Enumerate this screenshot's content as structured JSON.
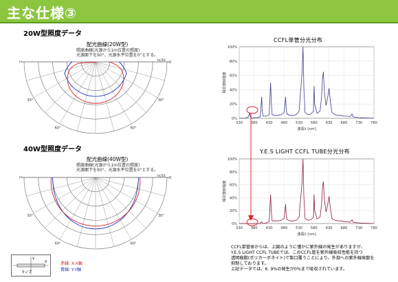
{
  "header": {
    "title": "主な仕様③"
  },
  "section20": {
    "title": "20W型照度データ",
    "curve_title": "配光曲線(20W型)",
    "notes": [
      "照度曲線(光源から1m位置の照度)",
      "光源面下を90°、光源水平位置を0°とする。"
    ],
    "unit": "lx/1k"
  },
  "section40": {
    "title": "40W型照度データ",
    "curve_title": "配光曲線(40W型)",
    "notes": [
      "照度曲線(光源から1m位置の照度)",
      "光源面下を90°、光源水平位置を0°とする。"
    ],
    "unit": "lx/1k"
  },
  "polar_angles": [
    "0°",
    "30°",
    "60°",
    "90°",
    "60°",
    "30°",
    "0°"
  ],
  "legend": {
    "red": "赤線: X-X軸",
    "blue": "青線: Y-Y軸",
    "lamp_label": "ランプ",
    "x_label": "X",
    "y_label": "Y"
  },
  "chart1": {
    "title": "CCFL単管分光分布"
  },
  "chart2": {
    "title": "Y.E.S LIGHT CCFL TUBE分光分布"
  },
  "description": [
    "CCFL単管体からは、上図のように僅かに紫外線の発生がありますが、",
    "Y.E.S LIGHT CCFL TUBEでは、このCCFL管を紫外線吸収性能を持つ",
    "透明樹脂(ポリカーボネイト)で製口覆うことにより、外部への紫外線発散を",
    "抑制しております。",
    "上記データでは、6. 9%の発生が0%まで吸収されています。"
  ],
  "chart_data": [
    {
      "type": "line",
      "title": "CCFL単管分光分布",
      "xlabel": "波長λ [nm]",
      "ylabel": "相対放射強度",
      "x_ticks": [
        330,
        380,
        430,
        480,
        530,
        580,
        630,
        680,
        730,
        780
      ],
      "y_ticks": [
        "0%",
        "20%",
        "40%",
        "60%",
        "80%",
        "100%"
      ],
      "xlim": [
        330,
        780
      ],
      "ylim": [
        0,
        100
      ],
      "color": "#3a3a8c",
      "series": [
        {
          "x": [
            330,
            350,
            360,
            365,
            367,
            370,
            375,
            380,
            390,
            400,
            405,
            407,
            410,
            420,
            430,
            435,
            437,
            440,
            450,
            460,
            470,
            480,
            485,
            487,
            490,
            500,
            510,
            520,
            530,
            540,
            543,
            546,
            550,
            560,
            570,
            578,
            580,
            582,
            590,
            600,
            605,
            608,
            611,
            615,
            620,
            625,
            630,
            635,
            640,
            650,
            660,
            670,
            680,
            690,
            700,
            707,
            710,
            730,
            780
          ],
          "y": [
            0,
            0,
            2,
            7,
            2,
            1,
            0,
            1,
            1,
            2,
            30,
            10,
            3,
            3,
            5,
            50,
            25,
            5,
            4,
            4,
            5,
            8,
            30,
            12,
            6,
            4,
            4,
            5,
            10,
            65,
            100,
            40,
            8,
            5,
            6,
            10,
            45,
            20,
            7,
            10,
            30,
            55,
            65,
            35,
            18,
            28,
            42,
            22,
            8,
            5,
            4,
            4,
            3,
            3,
            2,
            6,
            2,
            1,
            0
          ]
        }
      ]
    },
    {
      "type": "line",
      "title": "Y.E.S LIGHT CCFL TUBE分光分布",
      "xlabel": "波長λ [nm]",
      "ylabel": "相対放射強度",
      "x_ticks": [
        330,
        380,
        430,
        480,
        530,
        580,
        630,
        680,
        730,
        780
      ],
      "y_ticks": [
        "0%",
        "20%",
        "40%",
        "60%",
        "80%",
        "100%"
      ],
      "xlim": [
        330,
        780
      ],
      "ylim": [
        0,
        100
      ],
      "color": "#8c1a3a",
      "series": [
        {
          "x": [
            330,
            380,
            390,
            400,
            405,
            407,
            410,
            420,
            430,
            435,
            437,
            440,
            450,
            460,
            470,
            480,
            485,
            487,
            490,
            500,
            510,
            520,
            530,
            540,
            543,
            546,
            550,
            560,
            570,
            578,
            580,
            582,
            590,
            600,
            605,
            608,
            611,
            615,
            620,
            625,
            630,
            635,
            640,
            650,
            660,
            670,
            680,
            690,
            700,
            707,
            710,
            730,
            780
          ],
          "y": [
            0,
            0,
            0,
            0,
            3,
            1,
            0,
            1,
            3,
            45,
            20,
            4,
            4,
            4,
            5,
            8,
            30,
            12,
            6,
            4,
            4,
            5,
            10,
            65,
            100,
            40,
            8,
            5,
            6,
            10,
            45,
            20,
            7,
            10,
            30,
            55,
            65,
            35,
            18,
            28,
            42,
            22,
            8,
            5,
            4,
            4,
            3,
            3,
            2,
            6,
            2,
            1,
            0
          ]
        }
      ]
    }
  ]
}
